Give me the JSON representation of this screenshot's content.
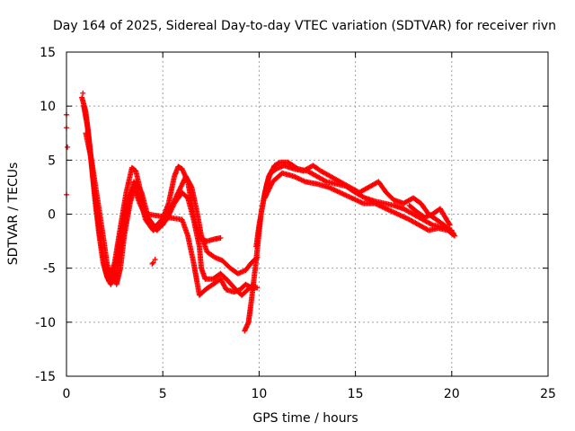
{
  "chart_data": {
    "type": "scatter",
    "title": "Day 164 of 2025, Sidereal Day-to-day VTEC variation (SDTVAR) for receiver rivn",
    "xlabel": "GPS time / hours",
    "ylabel": "SDTVAR / TECUs",
    "xlim": [
      0,
      25
    ],
    "ylim": [
      -15,
      15
    ],
    "xticks": [
      0,
      5,
      10,
      15,
      20,
      25
    ],
    "yticks": [
      -15,
      -10,
      -5,
      0,
      5,
      10,
      15
    ],
    "grid": true,
    "marker": "+",
    "color": "#ff0000",
    "series": [
      {
        "name": "track-1",
        "points": [
          [
            0.8,
            10.8
          ],
          [
            1.0,
            9.5
          ],
          [
            1.2,
            6.5
          ],
          [
            1.4,
            3.0
          ],
          [
            1.6,
            0.0
          ],
          [
            1.8,
            -2.8
          ],
          [
            2.0,
            -5.0
          ],
          [
            2.2,
            -6.2
          ],
          [
            2.5,
            -4.5
          ],
          [
            2.8,
            -1.2
          ],
          [
            3.1,
            2.0
          ],
          [
            3.4,
            4.3
          ],
          [
            3.6,
            4.0
          ],
          [
            3.8,
            2.5
          ],
          [
            4.0,
            0.5
          ],
          [
            4.3,
            -0.5
          ],
          [
            4.6,
            -1.2
          ],
          [
            5.0,
            -0.4
          ],
          [
            5.3,
            1.0
          ],
          [
            5.6,
            3.5
          ],
          [
            5.8,
            4.4
          ],
          [
            6.0,
            4.2
          ],
          [
            6.3,
            3.0
          ],
          [
            6.5,
            1.0
          ],
          [
            6.7,
            -1.0
          ],
          [
            7.0,
            -2.3
          ],
          [
            7.3,
            -2.5
          ],
          [
            7.7,
            -2.3
          ],
          [
            8.0,
            -2.2
          ]
        ]
      },
      {
        "name": "track-2",
        "points": [
          [
            0.9,
            10.0
          ],
          [
            1.1,
            8.0
          ],
          [
            1.3,
            4.5
          ],
          [
            1.5,
            1.0
          ],
          [
            1.7,
            -2.0
          ],
          [
            1.9,
            -4.5
          ],
          [
            2.1,
            -5.8
          ],
          [
            2.3,
            -6.5
          ],
          [
            2.6,
            -5.5
          ],
          [
            2.9,
            -2.5
          ],
          [
            3.2,
            0.5
          ],
          [
            3.5,
            3.0
          ],
          [
            3.8,
            1.5
          ],
          [
            4.1,
            -0.5
          ],
          [
            4.5,
            -1.5
          ],
          [
            5.0,
            -1.0
          ],
          [
            5.4,
            0.5
          ],
          [
            5.8,
            2.0
          ],
          [
            6.2,
            3.5
          ],
          [
            6.5,
            2.5
          ],
          [
            6.8,
            0.0
          ],
          [
            7.0,
            -2.0
          ],
          [
            7.3,
            -3.5
          ],
          [
            7.7,
            -4.0
          ],
          [
            8.1,
            -4.3
          ],
          [
            8.5,
            -5.0
          ],
          [
            8.9,
            -5.5
          ],
          [
            9.3,
            -5.2
          ],
          [
            9.6,
            -4.5
          ],
          [
            9.9,
            -4.0
          ]
        ]
      },
      {
        "name": "track-3",
        "points": [
          [
            1.0,
            7.5
          ],
          [
            1.3,
            5.0
          ],
          [
            1.6,
            1.5
          ],
          [
            1.9,
            -2.0
          ],
          [
            2.1,
            -4.5
          ],
          [
            2.3,
            -6.0
          ],
          [
            2.6,
            -4.0
          ],
          [
            2.9,
            -1.0
          ],
          [
            3.2,
            1.5
          ],
          [
            3.5,
            2.5
          ],
          [
            3.8,
            1.0
          ],
          [
            4.2,
            -0.5
          ],
          [
            4.7,
            -1.5
          ],
          [
            5.2,
            -0.5
          ],
          [
            5.6,
            1.0
          ],
          [
            6.0,
            2.0
          ],
          [
            6.3,
            1.5
          ],
          [
            6.6,
            -0.5
          ],
          [
            6.9,
            -3.0
          ],
          [
            7.0,
            -5.0
          ],
          [
            7.2,
            -6.0
          ],
          [
            7.6,
            -6.0
          ],
          [
            8.0,
            -5.5
          ],
          [
            8.4,
            -6.2
          ],
          [
            8.8,
            -7.0
          ],
          [
            9.1,
            -7.5
          ],
          [
            9.4,
            -7.0
          ],
          [
            9.7,
            -6.5
          ]
        ]
      },
      {
        "name": "track-4",
        "points": [
          [
            2.4,
            -5.0
          ],
          [
            2.6,
            -6.5
          ],
          [
            2.8,
            -5.0
          ],
          [
            3.0,
            -2.0
          ],
          [
            3.3,
            1.0
          ],
          [
            3.6,
            3.0
          ],
          [
            3.9,
            2.0
          ],
          [
            4.2,
            0.0
          ],
          [
            6.0,
            -0.5
          ],
          [
            6.3,
            -2.0
          ],
          [
            6.6,
            -4.5
          ],
          [
            6.8,
            -6.5
          ],
          [
            6.9,
            -7.5
          ],
          [
            7.2,
            -7.0
          ],
          [
            7.6,
            -6.5
          ],
          [
            8.0,
            -6.0
          ],
          [
            8.3,
            -7.0
          ],
          [
            8.7,
            -7.2
          ],
          [
            9.0,
            -7.0
          ],
          [
            9.3,
            -6.5
          ],
          [
            9.6,
            -6.8
          ],
          [
            9.9,
            -6.8
          ]
        ]
      },
      {
        "name": "track-5",
        "points": [
          [
            9.25,
            -10.8
          ],
          [
            9.45,
            -10.0
          ],
          [
            9.6,
            -8.0
          ],
          [
            9.8,
            -5.0
          ],
          [
            9.95,
            -2.5
          ],
          [
            10.1,
            0.0
          ],
          [
            10.3,
            2.0
          ],
          [
            10.5,
            3.5
          ],
          [
            10.8,
            4.5
          ],
          [
            11.1,
            4.8
          ],
          [
            11.5,
            4.8
          ],
          [
            12.0,
            4.2
          ],
          [
            12.5,
            4.0
          ],
          [
            13.0,
            3.5
          ],
          [
            13.5,
            3.0
          ],
          [
            14.0,
            2.8
          ],
          [
            14.5,
            2.6
          ],
          [
            15.0,
            2.0
          ],
          [
            15.5,
            1.5
          ],
          [
            16.0,
            1.2
          ],
          [
            16.5,
            1.0
          ],
          [
            17.0,
            0.8
          ],
          [
            17.5,
            0.5
          ],
          [
            18.0,
            0.0
          ],
          [
            18.5,
            -0.5
          ],
          [
            19.0,
            -1.0
          ],
          [
            19.5,
            -1.2
          ],
          [
            20.0,
            -1.5
          ]
        ]
      },
      {
        "name": "track-6",
        "points": [
          [
            9.85,
            -3.0
          ],
          [
            10.0,
            -1.0
          ],
          [
            10.2,
            1.0
          ],
          [
            10.4,
            2.8
          ],
          [
            10.6,
            3.8
          ],
          [
            10.9,
            4.2
          ],
          [
            11.3,
            4.5
          ],
          [
            11.8,
            4.2
          ],
          [
            12.3,
            4.0
          ],
          [
            12.8,
            4.5
          ],
          [
            13.2,
            4.0
          ],
          [
            13.7,
            3.5
          ],
          [
            14.2,
            3.0
          ],
          [
            14.7,
            2.5
          ],
          [
            15.2,
            2.0
          ],
          [
            15.7,
            2.5
          ],
          [
            16.2,
            3.0
          ],
          [
            16.6,
            2.0
          ],
          [
            17.0,
            1.3
          ],
          [
            17.5,
            1.0
          ],
          [
            18.0,
            1.5
          ],
          [
            18.4,
            1.0
          ],
          [
            18.8,
            0.0
          ],
          [
            19.2,
            -0.5
          ],
          [
            19.6,
            -1.0
          ],
          [
            20.1,
            -1.8
          ]
        ]
      },
      {
        "name": "track-7",
        "points": [
          [
            10.3,
            1.5
          ],
          [
            10.7,
            3.0
          ],
          [
            11.2,
            3.8
          ],
          [
            11.8,
            3.5
          ],
          [
            12.4,
            3.0
          ],
          [
            13.0,
            2.8
          ],
          [
            13.6,
            2.5
          ],
          [
            14.2,
            2.0
          ],
          [
            14.8,
            1.5
          ],
          [
            15.4,
            1.0
          ],
          [
            16.0,
            1.0
          ],
          [
            16.6,
            0.5
          ],
          [
            17.2,
            0.0
          ],
          [
            17.8,
            -0.5
          ],
          [
            18.3,
            -1.0
          ],
          [
            18.8,
            -1.5
          ],
          [
            19.3,
            -1.3
          ],
          [
            19.8,
            -1.5
          ],
          [
            20.15,
            -2.0
          ]
        ]
      },
      {
        "name": "track-8",
        "points": [
          [
            17.8,
            0.8
          ],
          [
            18.2,
            0.2
          ],
          [
            18.6,
            -0.3
          ],
          [
            19.0,
            0.0
          ],
          [
            19.4,
            0.5
          ],
          [
            19.9,
            -1.0
          ]
        ]
      }
    ],
    "isolated_points": [
      [
        0.0,
        9.2
      ],
      [
        0.0,
        8.0
      ],
      [
        0.05,
        6.2
      ],
      [
        0.0,
        1.8
      ],
      [
        4.5,
        -4.5
      ],
      [
        4.6,
        -4.2
      ],
      [
        4.45,
        -4.6
      ],
      [
        0.85,
        11.2
      ]
    ]
  }
}
